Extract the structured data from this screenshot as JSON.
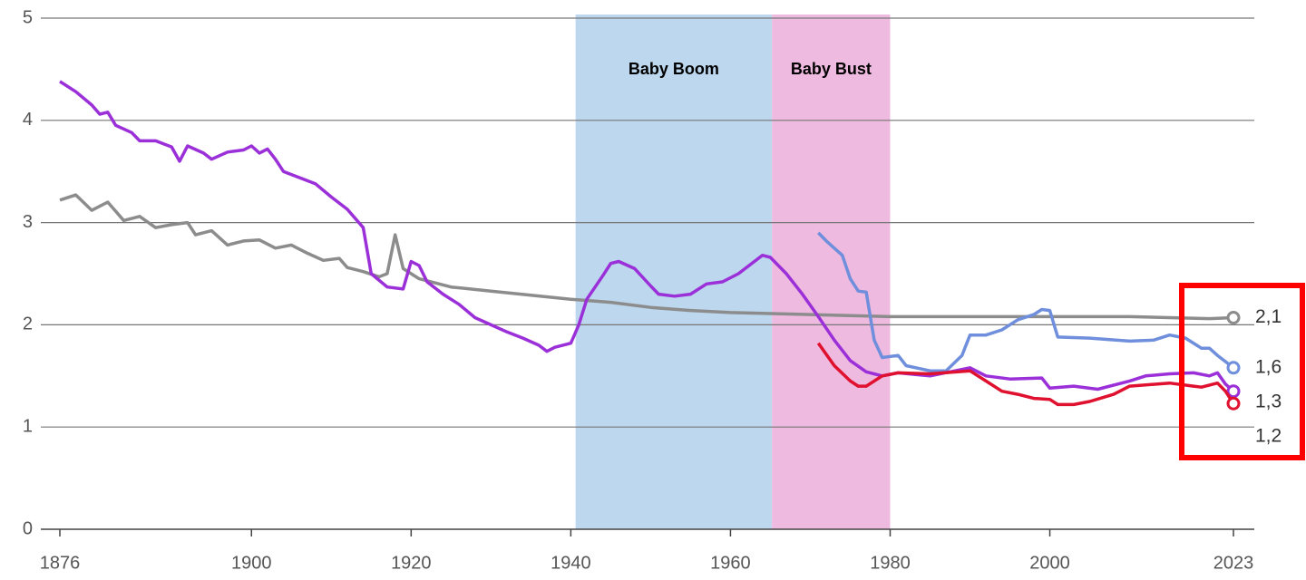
{
  "chart_data": {
    "type": "line",
    "xlim": [
      1876,
      2023
    ],
    "ylim": [
      0,
      5
    ],
    "xticks": [
      1876,
      1900,
      1920,
      1940,
      1960,
      1980,
      2000,
      2023
    ],
    "yticks": [
      0,
      1,
      2,
      3,
      4,
      5
    ],
    "grid": true,
    "bands": [
      {
        "label": "Baby Boom",
        "start": 1940.6,
        "end": 1965.2,
        "color": "#bcd7ee"
      },
      {
        "label": "Baby Bust",
        "start": 1965.2,
        "end": 1980,
        "color": "#efbadf"
      }
    ],
    "series": [
      {
        "color": "#8c8c8c",
        "x": [
          1876,
          1878,
          1880,
          1882,
          1884,
          1886,
          1888,
          1890,
          1892,
          1893,
          1895,
          1897,
          1899,
          1901,
          1903,
          1905,
          1907,
          1909,
          1911,
          1912,
          1914,
          1916,
          1917,
          1918,
          1919,
          1921,
          1925,
          1930,
          1935,
          1940,
          1945,
          1950,
          1955,
          1960,
          1970,
          1980,
          1990,
          2000,
          2010,
          2020,
          2023
        ],
        "values": [
          3.22,
          3.27,
          3.12,
          3.2,
          3.02,
          3.06,
          2.95,
          2.98,
          3.0,
          2.88,
          2.92,
          2.78,
          2.82,
          2.83,
          2.75,
          2.78,
          2.7,
          2.63,
          2.65,
          2.56,
          2.52,
          2.47,
          2.5,
          2.88,
          2.55,
          2.45,
          2.37,
          2.33,
          2.29,
          2.25,
          2.22,
          2.17,
          2.14,
          2.12,
          2.1,
          2.08,
          2.08,
          2.08,
          2.08,
          2.06,
          2.07
        ],
        "value_labels": [
          null,
          null,
          null,
          null,
          null,
          null,
          null,
          null,
          null,
          null,
          null,
          null,
          null,
          null,
          null,
          null,
          null,
          null,
          null,
          null,
          null,
          null,
          null,
          null,
          null,
          null,
          null,
          null,
          null,
          null,
          null,
          null,
          null,
          null,
          null,
          null,
          null,
          null,
          null,
          null,
          "2,1"
        ]
      },
      {
        "color": "#6f8fdc",
        "x": [
          1971,
          1972,
          1974,
          1975,
          1976,
          1977,
          1978,
          1979,
          1981,
          1982,
          1985,
          1987,
          1989,
          1990,
          1992,
          1994,
          1996,
          1998,
          1999,
          2000,
          2001,
          2005,
          2010,
          2013,
          2015,
          2017,
          2019,
          2020,
          2021,
          2023
        ],
        "values": [
          2.9,
          2.82,
          2.68,
          2.45,
          2.33,
          2.32,
          1.85,
          1.68,
          1.7,
          1.6,
          1.55,
          1.55,
          1.7,
          1.9,
          1.9,
          1.95,
          2.05,
          2.1,
          2.15,
          2.14,
          1.88,
          1.87,
          1.84,
          1.85,
          1.9,
          1.87,
          1.77,
          1.77,
          1.7,
          1.58
        ],
        "value_labels": [
          null,
          null,
          null,
          null,
          null,
          null,
          null,
          null,
          null,
          null,
          null,
          null,
          null,
          null,
          null,
          null,
          null,
          null,
          null,
          null,
          null,
          null,
          null,
          null,
          null,
          null,
          null,
          null,
          null,
          "1,6"
        ]
      },
      {
        "color": "#9b30d9",
        "x": [
          1876,
          1878,
          1880,
          1881,
          1882,
          1883,
          1885,
          1886,
          1888,
          1890,
          1891,
          1892,
          1894,
          1895,
          1897,
          1899,
          1900,
          1901,
          1902,
          1903,
          1904,
          1906,
          1908,
          1910,
          1912,
          1914,
          1915,
          1917,
          1919,
          1920,
          1921,
          1922,
          1924,
          1926,
          1928,
          1930,
          1932,
          1934,
          1936,
          1937,
          1938,
          1940,
          1941,
          1942,
          1944,
          1945,
          1946,
          1948,
          1950,
          1951,
          1953,
          1955,
          1957,
          1959,
          1961,
          1963,
          1964,
          1965,
          1967,
          1969,
          1971,
          1973,
          1975,
          1977,
          1979,
          1981,
          1985,
          1990,
          1992,
          1995,
          1999,
          2000,
          2003,
          2006,
          2010,
          2012,
          2015,
          2018,
          2020,
          2021,
          2022,
          2023
        ],
        "values": [
          4.38,
          4.28,
          4.15,
          4.06,
          4.08,
          3.95,
          3.88,
          3.8,
          3.8,
          3.74,
          3.6,
          3.75,
          3.68,
          3.62,
          3.69,
          3.71,
          3.75,
          3.68,
          3.72,
          3.62,
          3.5,
          3.44,
          3.38,
          3.25,
          3.13,
          2.95,
          2.5,
          2.37,
          2.35,
          2.62,
          2.58,
          2.42,
          2.3,
          2.2,
          2.07,
          2.0,
          1.93,
          1.87,
          1.8,
          1.74,
          1.78,
          1.82,
          2.0,
          2.25,
          2.48,
          2.6,
          2.62,
          2.55,
          2.38,
          2.3,
          2.28,
          2.3,
          2.4,
          2.42,
          2.5,
          2.62,
          2.68,
          2.66,
          2.5,
          2.3,
          2.08,
          1.85,
          1.65,
          1.54,
          1.5,
          1.53,
          1.5,
          1.58,
          1.5,
          1.47,
          1.48,
          1.38,
          1.4,
          1.37,
          1.45,
          1.5,
          1.52,
          1.53,
          1.5,
          1.53,
          1.42,
          1.35
        ],
        "value_labels": [
          null,
          null,
          null,
          null,
          null,
          null,
          null,
          null,
          null,
          null,
          null,
          null,
          null,
          null,
          null,
          null,
          null,
          null,
          null,
          null,
          null,
          null,
          null,
          null,
          null,
          null,
          null,
          null,
          null,
          null,
          null,
          null,
          null,
          null,
          null,
          null,
          null,
          null,
          null,
          null,
          null,
          null,
          null,
          null,
          null,
          null,
          null,
          null,
          null,
          null,
          null,
          null,
          null,
          null,
          null,
          null,
          null,
          null,
          null,
          null,
          null,
          null,
          null,
          null,
          null,
          null,
          null,
          null,
          null,
          null,
          null,
          null,
          null,
          null,
          null,
          null,
          null,
          null,
          null,
          null,
          null,
          "1,3"
        ]
      },
      {
        "color": "#e0102f",
        "x": [
          1971,
          1973,
          1975,
          1976,
          1977,
          1979,
          1981,
          1985,
          1990,
          1992,
          1994,
          1996,
          1998,
          2000,
          2001,
          2003,
          2005,
          2008,
          2010,
          2015,
          2018,
          2019,
          2021,
          2022,
          2023
        ],
        "values": [
          1.82,
          1.6,
          1.45,
          1.4,
          1.4,
          1.5,
          1.53,
          1.52,
          1.55,
          1.45,
          1.35,
          1.32,
          1.28,
          1.27,
          1.22,
          1.22,
          1.25,
          1.32,
          1.4,
          1.43,
          1.4,
          1.39,
          1.43,
          1.35,
          1.23
        ],
        "value_labels": [
          null,
          null,
          null,
          null,
          null,
          null,
          null,
          null,
          null,
          null,
          null,
          null,
          null,
          null,
          null,
          null,
          null,
          null,
          null,
          null,
          null,
          null,
          null,
          null,
          "1,2"
        ]
      }
    ]
  }
}
